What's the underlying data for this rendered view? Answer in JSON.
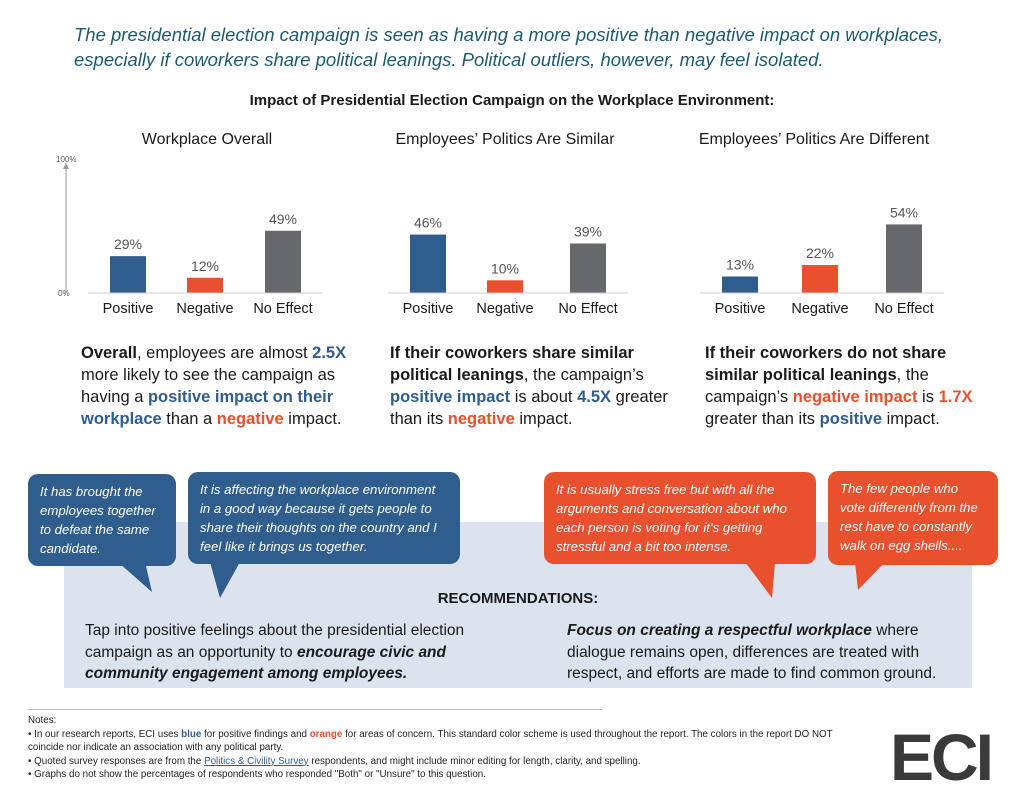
{
  "headline": "The presidential election campaign is seen as having a more positive than negative impact on workplaces, especially if coworkers share political leanings. Political outliers, however, may feel isolated.",
  "chart_data": {
    "type": "bar",
    "title": "Impact of Presidential Election Campaign on the Workplace Environment:",
    "categories": [
      "Positive",
      "Negative",
      "No Effect"
    ],
    "ylim": [
      0,
      100
    ],
    "y_ticks": [
      "100%",
      "0%"
    ],
    "grid": false,
    "colors": [
      "#2f5d8e",
      "#e8502e",
      "#67686b"
    ],
    "panels": [
      {
        "title": "Workplace Overall",
        "values": [
          29,
          12,
          49
        ],
        "labels": [
          "29%",
          "12%",
          "49%"
        ]
      },
      {
        "title": "Employees’ Politics Are Similar",
        "values": [
          46,
          10,
          39
        ],
        "labels": [
          "46%",
          "10%",
          "39%"
        ]
      },
      {
        "title": "Employees’ Politics Are Different",
        "values": [
          13,
          22,
          54
        ],
        "labels": [
          "13%",
          "22%",
          "54%"
        ]
      }
    ]
  },
  "summaries": {
    "s1": {
      "a": "Overall",
      "b": ", employees are almost ",
      "c": "2.5X",
      "d": " more likely to see the campaign as having a ",
      "e": "positive impact on their workplace",
      "f": " than a ",
      "g": "negative",
      "h": " impact."
    },
    "s2": {
      "a": "If their coworkers share similar political leanings",
      "b": ", the campaign’s ",
      "c": "positive impact",
      "d": " is about ",
      "e": "4.5X",
      "f": " greater than its ",
      "g": "negative",
      "h": " impact."
    },
    "s3": {
      "a": "If their coworkers do not share similar political leanings",
      "b": ", the campaign’s ",
      "c": "negative impact",
      "d": " is ",
      "e": "1.7X",
      "f": " greater than its ",
      "g": "positive",
      "h": " impact."
    }
  },
  "quotes": [
    "It has brought the employees together to defeat the same candidate.",
    "It is affecting the workplace environment in a good way because it gets people to share their thoughts on the country and I feel like it brings us together.",
    "It is usually stress free but with all the arguments and conversation about who each person is voting for it’s getting stressful and a bit too intense.",
    "The few people who vote differently from the rest have to constantly walk on egg shells...."
  ],
  "recommendations": {
    "title": "RECOMMENDATIONS:",
    "left_a": "Tap into positive feelings about the presidential election campaign as an opportunity to ",
    "left_b": "encourage civic and community engagement among employees.",
    "right_a": "Focus on creating a respectful workplace",
    "right_b": " where dialogue remains open, differences are treated with respect, and efforts are made to find common ground."
  },
  "notes": {
    "heading": "Notes:",
    "n1a": "• In our research reports, ECI uses ",
    "n1b": "blue",
    "n1c": " for positive findings and ",
    "n1d": "orange",
    "n1e": " for areas of concern. This standard color scheme is used throughout the report. The colors in the report DO NOT coincide nor indicate an association with any political party.",
    "n2a": "• Quoted survey responses are from the ",
    "n2b": "Politics & Civility Survey",
    "n2c": " respondents, and might include minor editing for length, clarity, and spelling.",
    "n3": "• Graphs do not show the percentages of respondents who responded \"Both\" or \"Unsure\" to this question."
  },
  "logo": "ECI"
}
